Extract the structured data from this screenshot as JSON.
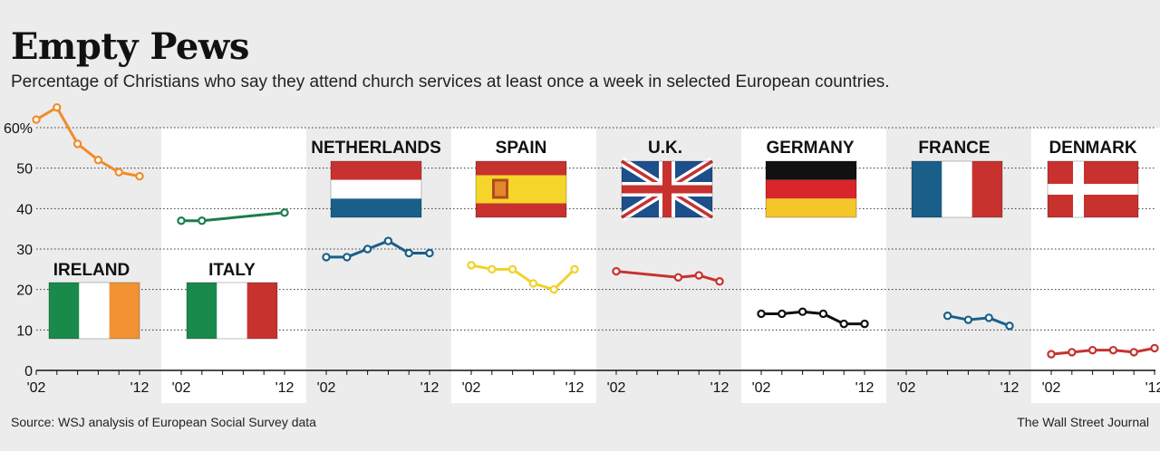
{
  "title": "Empty Pews",
  "subtitle": "Percentage of Christians who say they attend church services at least once a week in selected European countries.",
  "source": "Source: WSJ analysis of European Social Survey data",
  "credit": "The Wall Street Journal",
  "chart_data": {
    "type": "line",
    "ylim": [
      0,
      60
    ],
    "yticks": [
      0,
      10,
      20,
      30,
      40,
      50,
      60
    ],
    "ytick_labels": [
      "0",
      "10",
      "20",
      "30",
      "40",
      "50",
      "60%"
    ],
    "xlim": [
      2002,
      2012
    ],
    "x_tick_labels": [
      "'02",
      "'12"
    ],
    "grid": "dotted",
    "panels": [
      {
        "name": "IRELAND",
        "color": "#f08c2a",
        "flag": "ireland",
        "x": [
          2002,
          2004,
          2006,
          2008,
          2010,
          2012
        ],
        "values": [
          62,
          65,
          56,
          52,
          49,
          48
        ]
      },
      {
        "name": "ITALY",
        "color": "#1a7d4f",
        "flag": "italy",
        "x": [
          2002,
          2004,
          2012
        ],
        "values": [
          37,
          37,
          39
        ]
      },
      {
        "name": "NETHERLANDS",
        "color": "#1a5f8a",
        "flag": "netherlands",
        "x": [
          2002,
          2004,
          2006,
          2008,
          2010,
          2012
        ],
        "values": [
          28,
          28,
          30,
          32,
          29,
          29
        ]
      },
      {
        "name": "SPAIN",
        "color": "#f0d22a",
        "flag": "spain",
        "x": [
          2002,
          2004,
          2006,
          2008,
          2010,
          2012
        ],
        "values": [
          26,
          25,
          25,
          21.5,
          20,
          25
        ]
      },
      {
        "name": "U.K.",
        "color": "#c7322f",
        "flag": "uk",
        "x": [
          2002,
          2008,
          2010,
          2012
        ],
        "values": [
          24.5,
          23,
          23.5,
          22
        ]
      },
      {
        "name": "GERMANY",
        "color": "#111111",
        "flag": "germany",
        "x": [
          2002,
          2004,
          2006,
          2008,
          2010,
          2012
        ],
        "values": [
          14,
          14,
          14.5,
          14,
          11.5,
          11.5
        ]
      },
      {
        "name": "FRANCE",
        "color": "#1a5f8a",
        "flag": "france",
        "x": [
          2006,
          2008,
          2010,
          2012
        ],
        "values": [
          13.5,
          12.5,
          13,
          11
        ]
      },
      {
        "name": "DENMARK",
        "color": "#c7322f",
        "flag": "denmark",
        "x": [
          2002,
          2004,
          2006,
          2008,
          2010,
          2012
        ],
        "values": [
          4,
          4.5,
          5,
          5,
          4.5,
          5.5
        ]
      }
    ]
  }
}
